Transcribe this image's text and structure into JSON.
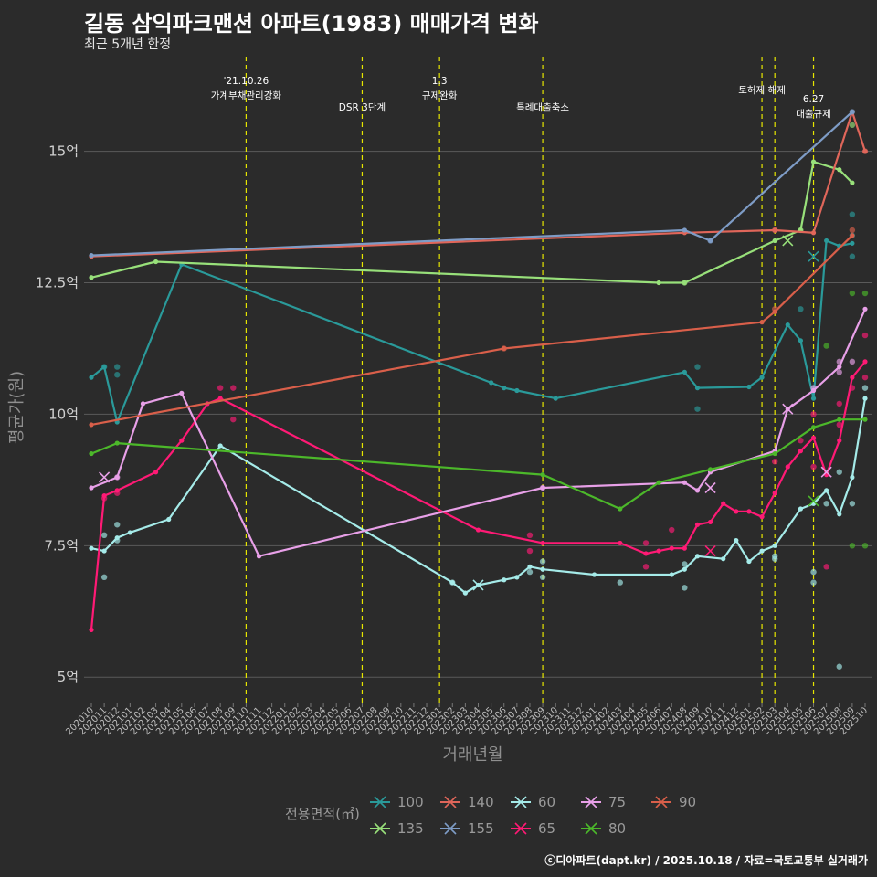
{
  "header": {
    "title": "길동 삼익파크맨션 아파트(1983) 매매가격 변화",
    "subtitle": "최근 5개년 한정"
  },
  "caption": "ⓒ디아파트(dapt.kr) / 2025.10.18 / 자료=국토교통부 실거래가",
  "colors": {
    "background": "#2b2b2b",
    "grid": "#5a5a5a",
    "policy_line": "#e6e600"
  },
  "chart_data": {
    "type": "line",
    "title": "길동 삼익파크맨션 아파트(1983) 매매가격 변화",
    "xlabel": "거래년월",
    "ylabel": "평균가(원)",
    "ylim": [
      4.5,
      16.8
    ],
    "y_ticks": [
      5,
      7.5,
      10,
      12.5,
      15
    ],
    "y_tick_labels": [
      "5억",
      "7.5억",
      "10억",
      "12.5억",
      "15억"
    ],
    "x_months": [
      "202010",
      "202011",
      "202012",
      "202101",
      "202102",
      "202103",
      "202104",
      "202105",
      "202106",
      "202107",
      "202108",
      "202109",
      "202110",
      "202111",
      "202112",
      "202201",
      "202202",
      "202203",
      "202204",
      "202205",
      "202206",
      "202207",
      "202208",
      "202209",
      "202210",
      "202211",
      "202212",
      "202301",
      "202302",
      "202303",
      "202304",
      "202305",
      "202306",
      "202307",
      "202308",
      "202309",
      "202310",
      "202311",
      "202312",
      "202401",
      "202402",
      "202403",
      "202404",
      "202405",
      "202406",
      "202407",
      "202408",
      "202409",
      "202410",
      "202411",
      "202412",
      "202501",
      "202502",
      "202503",
      "202504",
      "202505",
      "202506",
      "202507",
      "202508",
      "202509",
      "202510"
    ],
    "policies": [
      {
        "x": 12,
        "label": "'21.10.26\n가계부채관리강화"
      },
      {
        "x": 21,
        "label": "DSR 3단계"
      },
      {
        "x": 27,
        "label": "1.3\n규제완화"
      },
      {
        "x": 35,
        "label": "특례대출축소"
      },
      {
        "x": 52,
        "label": "토허제 해제"
      },
      {
        "x": 53,
        "label": ""
      },
      {
        "x": 56,
        "label": "6.27\n대출규제"
      }
    ],
    "legend_title": "전용면적(㎡)",
    "series": [
      {
        "name": "100",
        "color": "#2a9a9a",
        "line": [
          [
            0,
            10.7
          ],
          [
            1,
            10.9
          ],
          [
            2,
            9.85
          ],
          [
            7,
            12.85
          ],
          [
            31,
            10.6
          ],
          [
            32,
            10.5
          ],
          [
            33,
            10.45
          ],
          [
            36,
            10.3
          ],
          [
            46,
            10.8
          ],
          [
            47,
            10.5
          ],
          [
            51,
            10.52
          ],
          [
            52,
            10.7
          ],
          [
            54,
            11.7
          ],
          [
            55,
            11.4
          ],
          [
            56,
            10.3
          ],
          [
            57,
            13.3
          ],
          [
            58,
            13.2
          ],
          [
            59,
            13.25
          ]
        ],
        "points": [
          [
            1,
            10.9
          ],
          [
            2,
            10.9
          ],
          [
            2,
            10.75
          ],
          [
            47,
            10.9
          ],
          [
            47,
            10.1
          ],
          [
            55,
            12.0
          ],
          [
            56,
            10.5
          ],
          [
            59,
            13.8
          ],
          [
            59,
            13.4
          ],
          [
            59,
            13.0
          ]
        ],
        "x_marks": [
          [
            56,
            13.0
          ]
        ]
      },
      {
        "name": "135",
        "color": "#98e07a",
        "line": [
          [
            0,
            12.6
          ],
          [
            5,
            12.9
          ],
          [
            44,
            12.5
          ],
          [
            46,
            12.5
          ],
          [
            53,
            13.3
          ],
          [
            55,
            13.5
          ],
          [
            56,
            14.8
          ],
          [
            58,
            14.65
          ],
          [
            59,
            14.4
          ]
        ],
        "points": [
          [
            46,
            12.5
          ],
          [
            55,
            13.5
          ],
          [
            59,
            15.5
          ]
        ],
        "x_marks": [
          [
            54,
            13.3
          ]
        ]
      },
      {
        "name": "140",
        "color": "#e0665a",
        "line": [
          [
            0,
            13.0
          ],
          [
            46,
            13.45
          ],
          [
            53,
            13.5
          ],
          [
            56,
            13.45
          ],
          [
            59,
            15.75
          ],
          [
            60,
            15.0
          ]
        ],
        "points": [
          [
            53,
            13.5
          ],
          [
            60,
            15.0
          ]
        ],
        "x_marks": []
      },
      {
        "name": "155",
        "color": "#7e9cc6",
        "line": [
          [
            0,
            13.02
          ],
          [
            46,
            13.5
          ],
          [
            48,
            13.3
          ],
          [
            59,
            15.75
          ]
        ],
        "points": [
          [
            48,
            13.3
          ],
          [
            59,
            15.75
          ]
        ],
        "x_marks": []
      },
      {
        "name": "60",
        "color": "#a5ebe9",
        "line": [
          [
            0,
            7.45
          ],
          [
            1,
            7.4
          ],
          [
            2,
            7.65
          ],
          [
            3,
            7.75
          ],
          [
            6,
            8.0
          ],
          [
            10,
            9.4
          ],
          [
            28,
            6.8
          ],
          [
            29,
            6.6
          ],
          [
            30,
            6.75
          ],
          [
            32,
            6.85
          ],
          [
            33,
            6.9
          ],
          [
            34,
            7.1
          ],
          [
            35,
            7.05
          ],
          [
            39,
            6.95
          ],
          [
            45,
            6.95
          ],
          [
            46,
            7.05
          ],
          [
            47,
            7.3
          ],
          [
            49,
            7.25
          ],
          [
            50,
            7.6
          ],
          [
            51,
            7.2
          ],
          [
            52,
            7.4
          ],
          [
            53,
            7.5
          ],
          [
            55,
            8.2
          ],
          [
            56,
            8.3
          ],
          [
            57,
            8.55
          ],
          [
            58,
            8.1
          ],
          [
            59,
            8.8
          ],
          [
            60,
            10.3
          ]
        ],
        "points": [
          [
            1,
            7.7
          ],
          [
            1,
            6.9
          ],
          [
            2,
            7.6
          ],
          [
            2,
            7.9
          ],
          [
            28,
            6.8
          ],
          [
            34,
            7.0
          ],
          [
            35,
            6.9
          ],
          [
            35,
            7.2
          ],
          [
            41,
            6.8
          ],
          [
            46,
            6.7
          ],
          [
            46,
            7.15
          ],
          [
            53,
            7.3
          ],
          [
            53,
            7.25
          ],
          [
            56,
            7.0
          ],
          [
            56,
            6.8
          ],
          [
            57,
            8.3
          ],
          [
            58,
            5.2
          ],
          [
            58,
            8.9
          ],
          [
            59,
            8.3
          ],
          [
            60,
            10.5
          ]
        ],
        "x_marks": [
          [
            30,
            6.75
          ]
        ]
      },
      {
        "name": "65",
        "color": "#ff1a75",
        "line": [
          [
            0,
            5.9
          ],
          [
            1,
            8.45
          ],
          [
            2,
            8.55
          ],
          [
            5,
            8.9
          ],
          [
            7,
            9.5
          ],
          [
            9,
            10.2
          ],
          [
            10,
            10.3
          ],
          [
            30,
            7.8
          ],
          [
            35,
            7.55
          ],
          [
            41,
            7.55
          ],
          [
            43,
            7.35
          ],
          [
            44,
            7.4
          ],
          [
            45,
            7.45
          ],
          [
            46,
            7.45
          ],
          [
            47,
            7.9
          ],
          [
            48,
            7.95
          ],
          [
            49,
            8.3
          ],
          [
            50,
            8.15
          ],
          [
            51,
            8.15
          ],
          [
            52,
            8.05
          ],
          [
            53,
            8.5
          ],
          [
            54,
            9.0
          ],
          [
            55,
            9.3
          ],
          [
            56,
            9.55
          ],
          [
            57,
            8.85
          ],
          [
            58,
            9.5
          ],
          [
            59,
            10.7
          ],
          [
            60,
            11.0
          ]
        ],
        "points": [
          [
            1,
            8.4
          ],
          [
            2,
            8.5
          ],
          [
            10,
            10.5
          ],
          [
            11,
            10.5
          ],
          [
            11,
            9.9
          ],
          [
            34,
            7.7
          ],
          [
            34,
            7.4
          ],
          [
            43,
            7.55
          ],
          [
            43,
            7.1
          ],
          [
            45,
            7.8
          ],
          [
            53,
            9.1
          ],
          [
            55,
            9.5
          ],
          [
            56,
            9.0
          ],
          [
            56,
            10.0
          ],
          [
            57,
            7.1
          ],
          [
            58,
            10.2
          ],
          [
            58,
            9.8
          ],
          [
            59,
            10.5
          ],
          [
            60,
            11.5
          ],
          [
            60,
            10.7
          ]
        ],
        "x_marks": [
          [
            48,
            7.4
          ]
        ]
      },
      {
        "name": "75",
        "color": "#e8a0e8",
        "line": [
          [
            0,
            8.6
          ],
          [
            2,
            8.8
          ],
          [
            4,
            10.2
          ],
          [
            7,
            10.4
          ],
          [
            13,
            7.3
          ],
          [
            35,
            8.6
          ],
          [
            46,
            8.7
          ],
          [
            47,
            8.55
          ],
          [
            48,
            8.9
          ],
          [
            53,
            9.3
          ],
          [
            54,
            10.1
          ],
          [
            56,
            10.45
          ],
          [
            58,
            10.9
          ],
          [
            60,
            12.0
          ]
        ],
        "points": [
          [
            2,
            8.8
          ],
          [
            35,
            8.6
          ],
          [
            56,
            10.5
          ],
          [
            58,
            11.0
          ],
          [
            58,
            10.8
          ],
          [
            59,
            11.0
          ]
        ],
        "x_marks": [
          [
            1,
            8.8
          ],
          [
            48,
            8.6
          ],
          [
            54,
            10.1
          ],
          [
            57,
            8.9
          ]
        ]
      },
      {
        "name": "90",
        "color": "#d95f4a",
        "line": [
          [
            0,
            9.8
          ],
          [
            32,
            11.25
          ],
          [
            52,
            11.75
          ],
          [
            53,
            11.95
          ],
          [
            59,
            13.4
          ]
        ],
        "points": [
          [
            32,
            11.25
          ],
          [
            53,
            12.0
          ],
          [
            59,
            13.5
          ]
        ],
        "x_marks": []
      },
      {
        "name": "80",
        "color": "#4cb82a",
        "line": [
          [
            0,
            9.25
          ],
          [
            2,
            9.45
          ],
          [
            35,
            8.85
          ],
          [
            41,
            8.2
          ],
          [
            44,
            8.7
          ],
          [
            48,
            8.95
          ],
          [
            53,
            9.25
          ],
          [
            56,
            9.75
          ],
          [
            58,
            9.9
          ],
          [
            60,
            9.9
          ]
        ],
        "points": [
          [
            59,
            12.3
          ],
          [
            59,
            7.5
          ],
          [
            60,
            12.3
          ],
          [
            60,
            7.5
          ],
          [
            57,
            11.3
          ]
        ],
        "x_marks": [
          [
            56,
            8.35
          ]
        ]
      }
    ]
  }
}
